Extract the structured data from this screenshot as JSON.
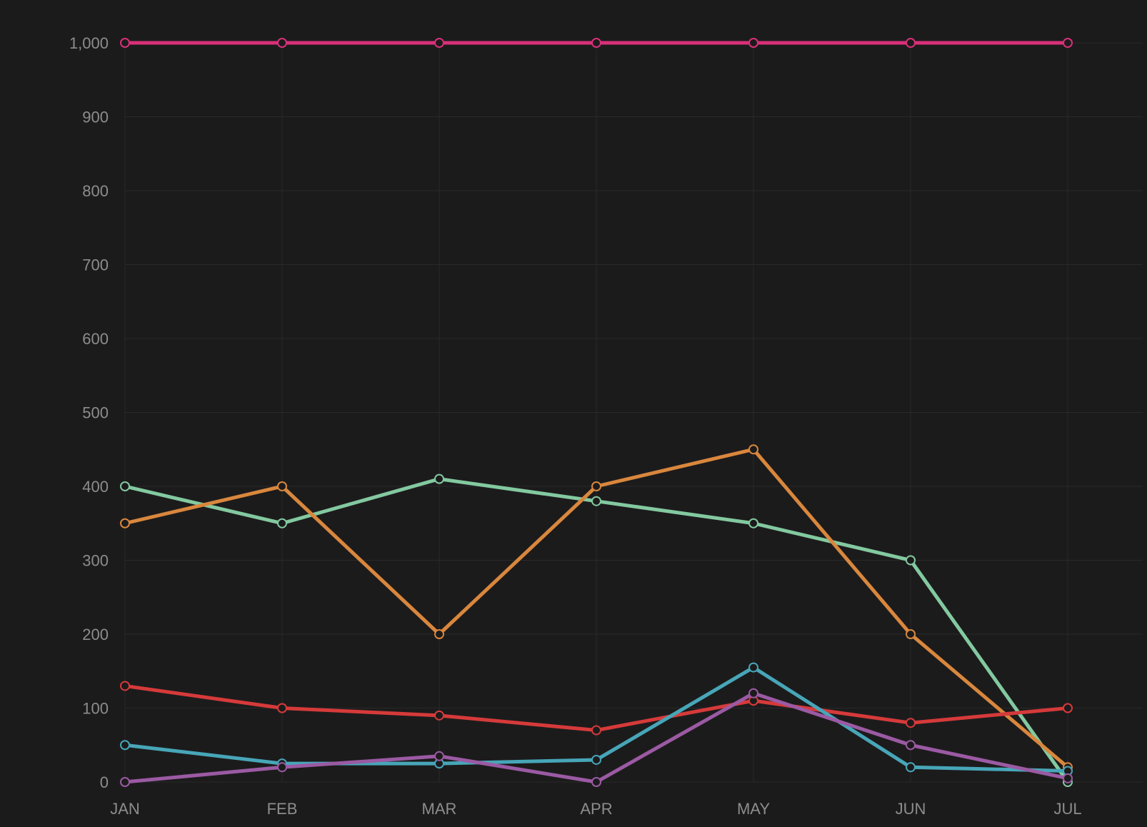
{
  "chart_data": {
    "type": "line",
    "title": "",
    "xlabel": "",
    "ylabel": "",
    "categories": [
      "JAN",
      "FEB",
      "MAR",
      "APR",
      "MAY",
      "JUN",
      "JUL"
    ],
    "ylim": [
      0,
      1000
    ],
    "y_ticks": [
      0,
      100,
      200,
      300,
      400,
      500,
      600,
      700,
      800,
      900,
      1000
    ],
    "y_tick_labels": [
      "0",
      "100",
      "200",
      "300",
      "400",
      "500",
      "600",
      "700",
      "800",
      "900",
      "1,000"
    ],
    "grid": true,
    "legend": "none",
    "series": [
      {
        "color": "#d9307a",
        "values": [
          1000,
          1000,
          1000,
          1000,
          1000,
          1000,
          1000
        ]
      },
      {
        "color": "#83c9a0",
        "values": [
          400,
          350,
          410,
          380,
          350,
          300,
          0
        ]
      },
      {
        "color": "#d9873d",
        "values": [
          350,
          400,
          200,
          400,
          450,
          200,
          20
        ]
      },
      {
        "color": "#d63a3a",
        "values": [
          130,
          100,
          90,
          70,
          110,
          80,
          100
        ]
      },
      {
        "color": "#47a6b8",
        "values": [
          50,
          25,
          25,
          30,
          155,
          20,
          15
        ]
      },
      {
        "color": "#9b5aa3",
        "values": [
          0,
          20,
          35,
          0,
          120,
          50,
          5
        ]
      }
    ]
  }
}
